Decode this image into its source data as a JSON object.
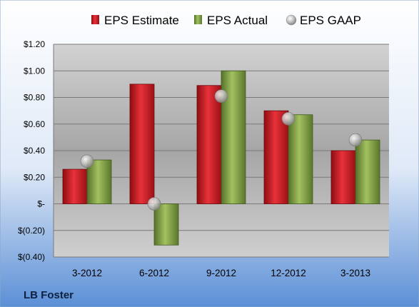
{
  "company": "LB Foster",
  "chart_data": {
    "type": "bar",
    "categories": [
      "3-2012",
      "6-2012",
      "9-2012",
      "12-2012",
      "3-2013"
    ],
    "series": [
      {
        "name": "EPS Estimate",
        "kind": "bar",
        "color": "#d41f26",
        "values": [
          0.26,
          0.9,
          0.89,
          0.7,
          0.4
        ]
      },
      {
        "name": "EPS Actual",
        "kind": "bar",
        "color": "#7f9f3c",
        "values": [
          0.33,
          -0.31,
          1.0,
          0.67,
          0.48
        ]
      },
      {
        "name": "EPS GAAP",
        "kind": "marker",
        "color": "#b8b8b8",
        "values": [
          0.32,
          0.0,
          0.81,
          0.64,
          0.48
        ]
      }
    ],
    "ylim": [
      -0.4,
      1.2
    ],
    "yticks": [
      -0.4,
      -0.2,
      0,
      0.2,
      0.4,
      0.6,
      0.8,
      1.0,
      1.2
    ],
    "ytick_labels": [
      "$(0.40)",
      "$(0.20)",
      "$-",
      "$0.20",
      "$0.40",
      "$0.60",
      "$0.80",
      "$1.00",
      "$1.20"
    ],
    "grid": true,
    "legend_position": "top"
  }
}
